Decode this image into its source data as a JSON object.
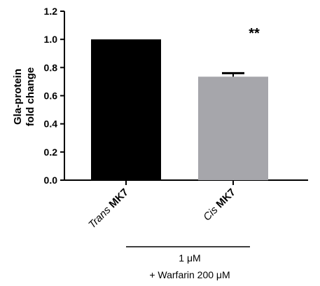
{
  "chart_data": {
    "type": "bar",
    "categories": [
      {
        "italic_part": "Trans",
        "bold_part": "MK7"
      },
      {
        "italic_part": "Cis",
        "bold_part": "MK7"
      }
    ],
    "values": [
      1.0,
      0.735
    ],
    "errors": [
      0.0,
      0.025
    ],
    "colors": [
      "#000000",
      "#a6a6ab"
    ],
    "significance": [
      "",
      "**"
    ],
    "ylabel_lines": [
      "Gla-protein",
      "fold change"
    ],
    "ylim": [
      0,
      1.2
    ],
    "yticks": [
      "0.0",
      "0.2",
      "0.4",
      "0.6",
      "0.8",
      "1.0",
      "1.2"
    ],
    "ytick_values": [
      0,
      0.2,
      0.4,
      0.6,
      0.8,
      1.0,
      1.2
    ],
    "bracket_label": "1 μM",
    "footnote": "+ Warfarin 200 μM",
    "grid": false
  }
}
